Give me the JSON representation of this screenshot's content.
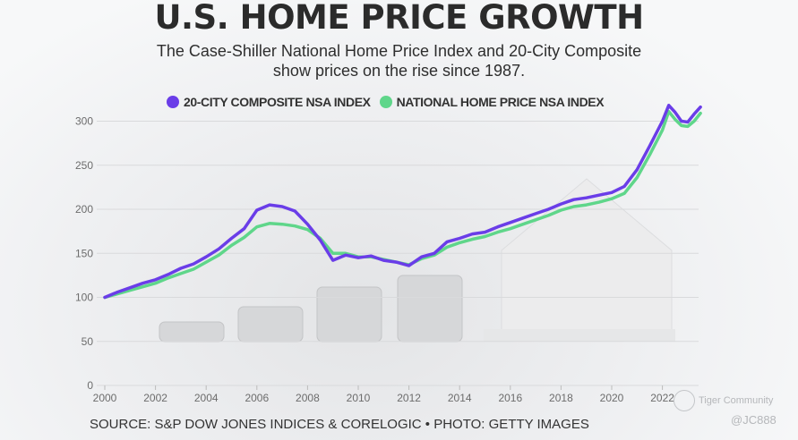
{
  "title": "U.S. HOME PRICE GROWTH",
  "subtitle_line1": "The Case-Shiller National Home Price Index and 20-City Composite",
  "subtitle_line2": "show prices on the rise since 1987.",
  "source": "SOURCE: S&P DOW JONES INDICES & CORELOGIC • PHOTO: GETTY IMAGES",
  "watermark": {
    "brand": "Tiger Community",
    "handle": "@JC888"
  },
  "colors": {
    "composite": "#6a3de8",
    "national": "#5fd68a",
    "grid": "#d9dadc",
    "tick": "#6c6c6c"
  },
  "chart_data": {
    "type": "line",
    "title": "U.S. HOME PRICE GROWTH",
    "xlabel": "",
    "ylabel": "",
    "xlim": [
      2000,
      2023.5
    ],
    "ylim": [
      0,
      300
    ],
    "x_ticks": [
      "2000",
      "2002",
      "2004",
      "2006",
      "2008",
      "2010",
      "2012",
      "2014",
      "2016",
      "2018",
      "2020",
      "2022"
    ],
    "y_ticks": [
      "0",
      "50",
      "100",
      "150",
      "200",
      "250",
      "300"
    ],
    "grid": true,
    "legend_position": "top",
    "x": [
      2000,
      2000.5,
      2001,
      2001.5,
      2002,
      2002.5,
      2003,
      2003.5,
      2004,
      2004.5,
      2005,
      2005.5,
      2006,
      2006.5,
      2007,
      2007.5,
      2008,
      2008.5,
      2009,
      2009.5,
      2010,
      2010.5,
      2011,
      2011.5,
      2012,
      2012.5,
      2013,
      2013.5,
      2014,
      2014.5,
      2015,
      2015.5,
      2016,
      2016.5,
      2017,
      2017.5,
      2018,
      2018.5,
      2019,
      2019.5,
      2020,
      2020.5,
      2021,
      2021.5,
      2022,
      2022.25,
      2022.5,
      2022.75,
      2023,
      2023.25,
      2023.5
    ],
    "series": [
      {
        "name": "20-CITY COMPOSITE NSA INDEX",
        "values": [
          100,
          106,
          111,
          116,
          120,
          126,
          133,
          138,
          146,
          155,
          167,
          178,
          199,
          205,
          203,
          198,
          183,
          165,
          142,
          148,
          145,
          147,
          142,
          140,
          136,
          146,
          150,
          163,
          167,
          172,
          174,
          180,
          185,
          190,
          195,
          200,
          206,
          211,
          213,
          216,
          219,
          226,
          245,
          272,
          300,
          318,
          310,
          300,
          299,
          308,
          316
        ]
      },
      {
        "name": "NATIONAL HOME PRICE NSA INDEX",
        "values": [
          100,
          104,
          108,
          112,
          116,
          122,
          127,
          132,
          140,
          148,
          159,
          168,
          180,
          184,
          183,
          181,
          177,
          167,
          150,
          150,
          146,
          146,
          143,
          140,
          137,
          144,
          148,
          157,
          162,
          166,
          169,
          174,
          178,
          183,
          188,
          193,
          199,
          203,
          205,
          208,
          212,
          218,
          236,
          262,
          290,
          311,
          302,
          295,
          294,
          300,
          309
        ]
      }
    ]
  }
}
